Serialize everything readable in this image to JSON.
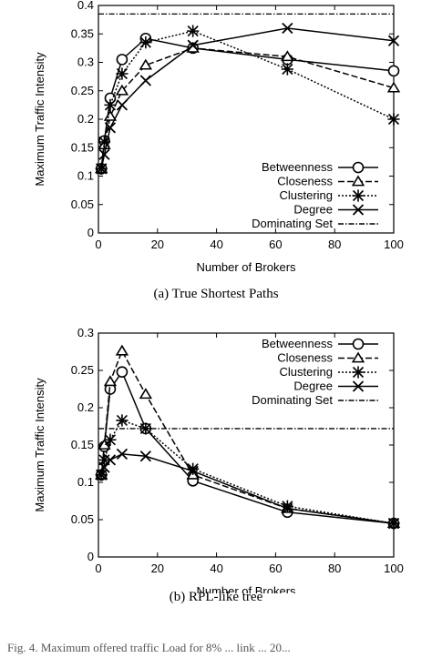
{
  "chart_data": [
    {
      "type": "line",
      "caption": "(a)  True Shortest Paths",
      "xlabel": "Number of Brokers",
      "ylabel": "Maximum Traffic Intensity",
      "xlim": [
        0,
        100
      ],
      "ylim": [
        0,
        0.4
      ],
      "xticks": [
        "0",
        "20",
        "40",
        "60",
        "80",
        "100"
      ],
      "yticks": [
        "0",
        "0.05",
        "0.1",
        "0.15",
        "0.2",
        "0.25",
        "0.3",
        "0.35",
        "0.4"
      ],
      "grid": false,
      "legend_position": "bottom-right",
      "series": [
        {
          "name": "Betweenness",
          "marker": "circle",
          "dash": "solid",
          "x": [
            1,
            2,
            4,
            8,
            16,
            32,
            64,
            100
          ],
          "y": [
            0.113,
            0.162,
            0.237,
            0.305,
            0.342,
            0.325,
            0.305,
            0.285
          ]
        },
        {
          "name": "Closeness",
          "marker": "triangle",
          "dash": "dashed",
          "x": [
            1,
            2,
            4,
            8,
            16,
            32,
            64,
            100
          ],
          "y": [
            0.113,
            0.155,
            0.205,
            0.25,
            0.295,
            0.325,
            0.31,
            0.255
          ]
        },
        {
          "name": "Clustering",
          "marker": "star",
          "dash": "dotted",
          "x": [
            1,
            2,
            4,
            8,
            16,
            32,
            64,
            100
          ],
          "y": [
            0.113,
            0.16,
            0.225,
            0.28,
            0.335,
            0.355,
            0.288,
            0.2
          ]
        },
        {
          "name": "Degree",
          "marker": "x",
          "dash": "solid",
          "x": [
            1,
            2,
            4,
            8,
            16,
            32,
            64,
            100
          ],
          "y": [
            0.113,
            0.138,
            0.185,
            0.225,
            0.268,
            0.33,
            0.36,
            0.338
          ]
        }
      ],
      "reference_lines": [
        {
          "name": "Dominating Set",
          "dash": "dash-dot",
          "y": 0.385
        }
      ]
    },
    {
      "type": "line",
      "caption": "(b)  RPL-like tree",
      "xlabel": "Number of Brokers",
      "ylabel": "Maximum Traffic Intensity",
      "xlim": [
        0,
        100
      ],
      "ylim": [
        0,
        0.3
      ],
      "xticks": [
        "0",
        "20",
        "40",
        "60",
        "80",
        "100"
      ],
      "yticks": [
        "0",
        "0.05",
        "0.1",
        "0.15",
        "0.2",
        "0.25",
        "0.3"
      ],
      "grid": false,
      "legend_position": "top-right",
      "series": [
        {
          "name": "Betweenness",
          "marker": "circle",
          "dash": "solid",
          "x": [
            1,
            2,
            4,
            8,
            16,
            32,
            64,
            100
          ],
          "y": [
            0.11,
            0.148,
            0.225,
            0.248,
            0.172,
            0.102,
            0.06,
            0.045
          ]
        },
        {
          "name": "Closeness",
          "marker": "triangle",
          "dash": "dashed",
          "x": [
            1,
            2,
            4,
            8,
            16,
            32,
            64,
            100
          ],
          "y": [
            0.11,
            0.15,
            0.235,
            0.276,
            0.218,
            0.11,
            0.065,
            0.045
          ]
        },
        {
          "name": "Clustering",
          "marker": "star",
          "dash": "dotted",
          "x": [
            1,
            2,
            4,
            8,
            16,
            32,
            64,
            100
          ],
          "y": [
            0.11,
            0.13,
            0.157,
            0.183,
            0.172,
            0.118,
            0.068,
            0.045
          ]
        },
        {
          "name": "Degree",
          "marker": "x",
          "dash": "solid",
          "x": [
            1,
            2,
            4,
            8,
            16,
            32,
            64,
            100
          ],
          "y": [
            0.11,
            0.12,
            0.13,
            0.138,
            0.135,
            0.115,
            0.065,
            0.045
          ]
        }
      ],
      "reference_lines": [
        {
          "name": "Dominating Set",
          "dash": "dash-dot",
          "y": 0.172
        }
      ]
    }
  ],
  "figure_caption": "Fig. 4.    Maximum offered traffic Load for 8% ... link ... 20..."
}
